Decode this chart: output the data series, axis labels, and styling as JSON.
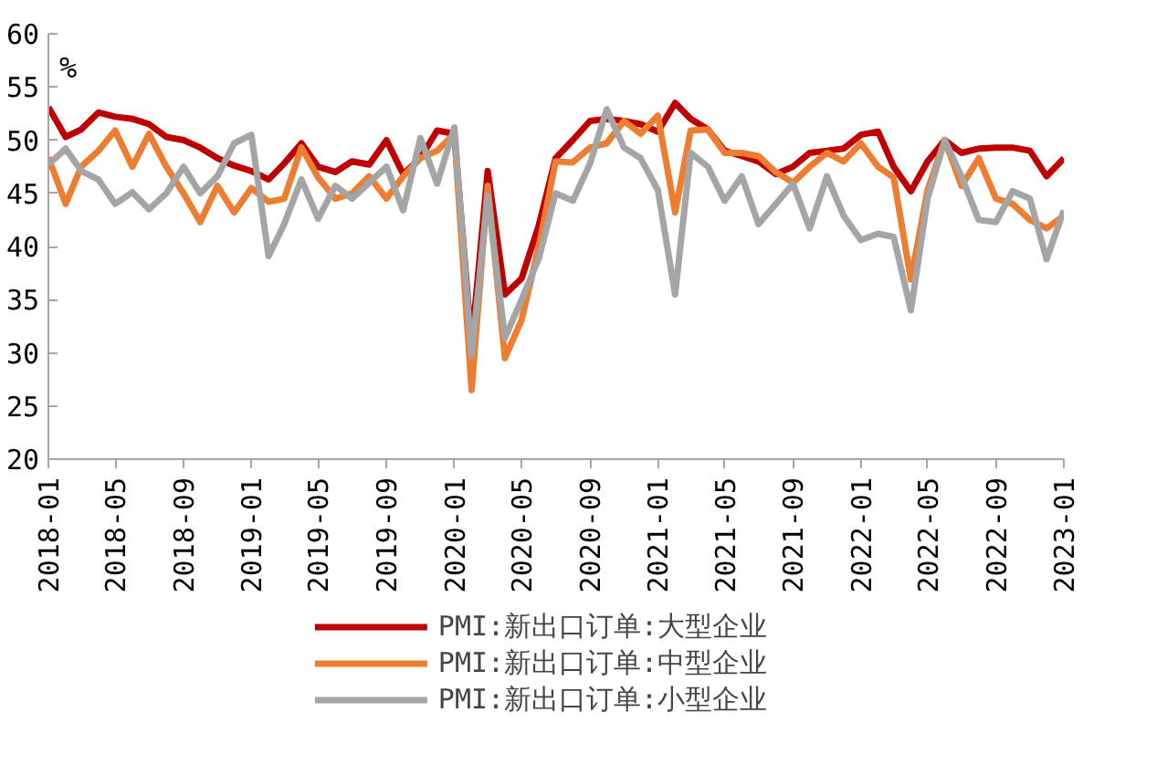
{
  "chart_data": {
    "type": "line",
    "ylabel": "%",
    "x": [
      "2018-01",
      "2018-02",
      "2018-03",
      "2018-04",
      "2018-05",
      "2018-06",
      "2018-07",
      "2018-08",
      "2018-09",
      "2018-10",
      "2018-11",
      "2018-12",
      "2019-01",
      "2019-02",
      "2019-03",
      "2019-04",
      "2019-05",
      "2019-06",
      "2019-07",
      "2019-08",
      "2019-09",
      "2019-10",
      "2019-11",
      "2019-12",
      "2020-01",
      "2020-02",
      "2020-03",
      "2020-04",
      "2020-05",
      "2020-06",
      "2020-07",
      "2020-08",
      "2020-09",
      "2020-10",
      "2020-11",
      "2020-12",
      "2021-01",
      "2021-02",
      "2021-03",
      "2021-04",
      "2021-05",
      "2021-06",
      "2021-07",
      "2021-08",
      "2021-09",
      "2021-10",
      "2021-11",
      "2021-12",
      "2022-01",
      "2022-02",
      "2022-03",
      "2022-04",
      "2022-05",
      "2022-06",
      "2022-07",
      "2022-08",
      "2022-09",
      "2022-10",
      "2022-11",
      "2022-12",
      "2023-01"
    ],
    "series": [
      {
        "name": "PMI:新出口订单:大型企业",
        "color": "#c00000",
        "values": [
          53.1,
          50.3,
          51.0,
          52.6,
          52.2,
          52.0,
          51.5,
          50.3,
          50.0,
          49.3,
          48.3,
          47.6,
          47.1,
          46.3,
          47.8,
          49.7,
          47.5,
          47.0,
          48.0,
          47.7,
          50.0,
          46.8,
          48.3,
          50.9,
          50.6,
          30.8,
          47.1,
          35.5,
          37.0,
          42.0,
          48.3,
          50.0,
          51.8,
          52.0,
          51.8,
          51.5,
          50.8,
          53.5,
          52.0,
          51.0,
          49.0,
          48.5,
          48.0,
          46.8,
          47.5,
          48.8,
          49.0,
          49.2,
          50.5,
          50.8,
          47.5,
          45.2,
          48.0,
          50.0,
          48.8,
          49.2,
          49.3,
          49.3,
          49.0,
          46.6,
          48.3
        ]
      },
      {
        "name": "PMI:新出口订单:中型企业",
        "color": "#ed7d31",
        "values": [
          48.4,
          44.0,
          47.5,
          49.0,
          50.9,
          47.5,
          50.6,
          47.5,
          45.0,
          42.3,
          45.7,
          43.2,
          45.5,
          44.2,
          44.5,
          49.3,
          46.5,
          44.5,
          45.0,
          46.6,
          44.5,
          46.6,
          48.3,
          49.0,
          50.6,
          26.5,
          45.7,
          29.5,
          33.1,
          40.0,
          48.0,
          47.9,
          49.3,
          49.7,
          51.8,
          50.6,
          52.3,
          43.2,
          50.9,
          51.0,
          48.8,
          48.8,
          48.5,
          47.0,
          46.0,
          47.5,
          48.8,
          48.0,
          49.7,
          47.5,
          46.5,
          36.9,
          45.3,
          50.0,
          45.7,
          48.3,
          44.5,
          44.0,
          42.5,
          41.7,
          42.9
        ]
      },
      {
        "name": "PMI:新出口订单:小型企业",
        "color": "#a5a5a5",
        "values": [
          47.7,
          49.2,
          47.1,
          46.3,
          44.0,
          45.1,
          43.5,
          45.0,
          47.5,
          45.0,
          46.6,
          49.7,
          50.5,
          39.1,
          42.1,
          46.3,
          42.6,
          45.7,
          44.5,
          46.0,
          47.5,
          43.4,
          50.2,
          45.9,
          51.2,
          29.7,
          44.8,
          31.4,
          35.0,
          38.9,
          45.0,
          44.3,
          47.8,
          52.9,
          49.3,
          48.3,
          45.3,
          35.5,
          48.8,
          47.5,
          44.3,
          46.6,
          42.1,
          44.0,
          45.9,
          41.7,
          46.6,
          42.9,
          40.6,
          41.2,
          40.9,
          34.0,
          44.5,
          50.0,
          46.6,
          42.5,
          42.3,
          45.2,
          44.5,
          38.8,
          43.4
        ]
      }
    ],
    "ylim": [
      20,
      60
    ],
    "yticks": [
      20,
      25,
      30,
      35,
      40,
      45,
      50,
      55,
      60
    ],
    "xlim": [
      "2018-01",
      "2023-01"
    ],
    "xticks": [
      "2018-01",
      "2018-05",
      "2018-09",
      "2019-01",
      "2019-05",
      "2019-09",
      "2020-01",
      "2020-05",
      "2020-09",
      "2021-01",
      "2021-05",
      "2021-09",
      "2022-01",
      "2022-05",
      "2022-09",
      "2023-01"
    ],
    "legend": "bottom",
    "grid": false,
    "line_style": "solid",
    "marker": "none"
  }
}
